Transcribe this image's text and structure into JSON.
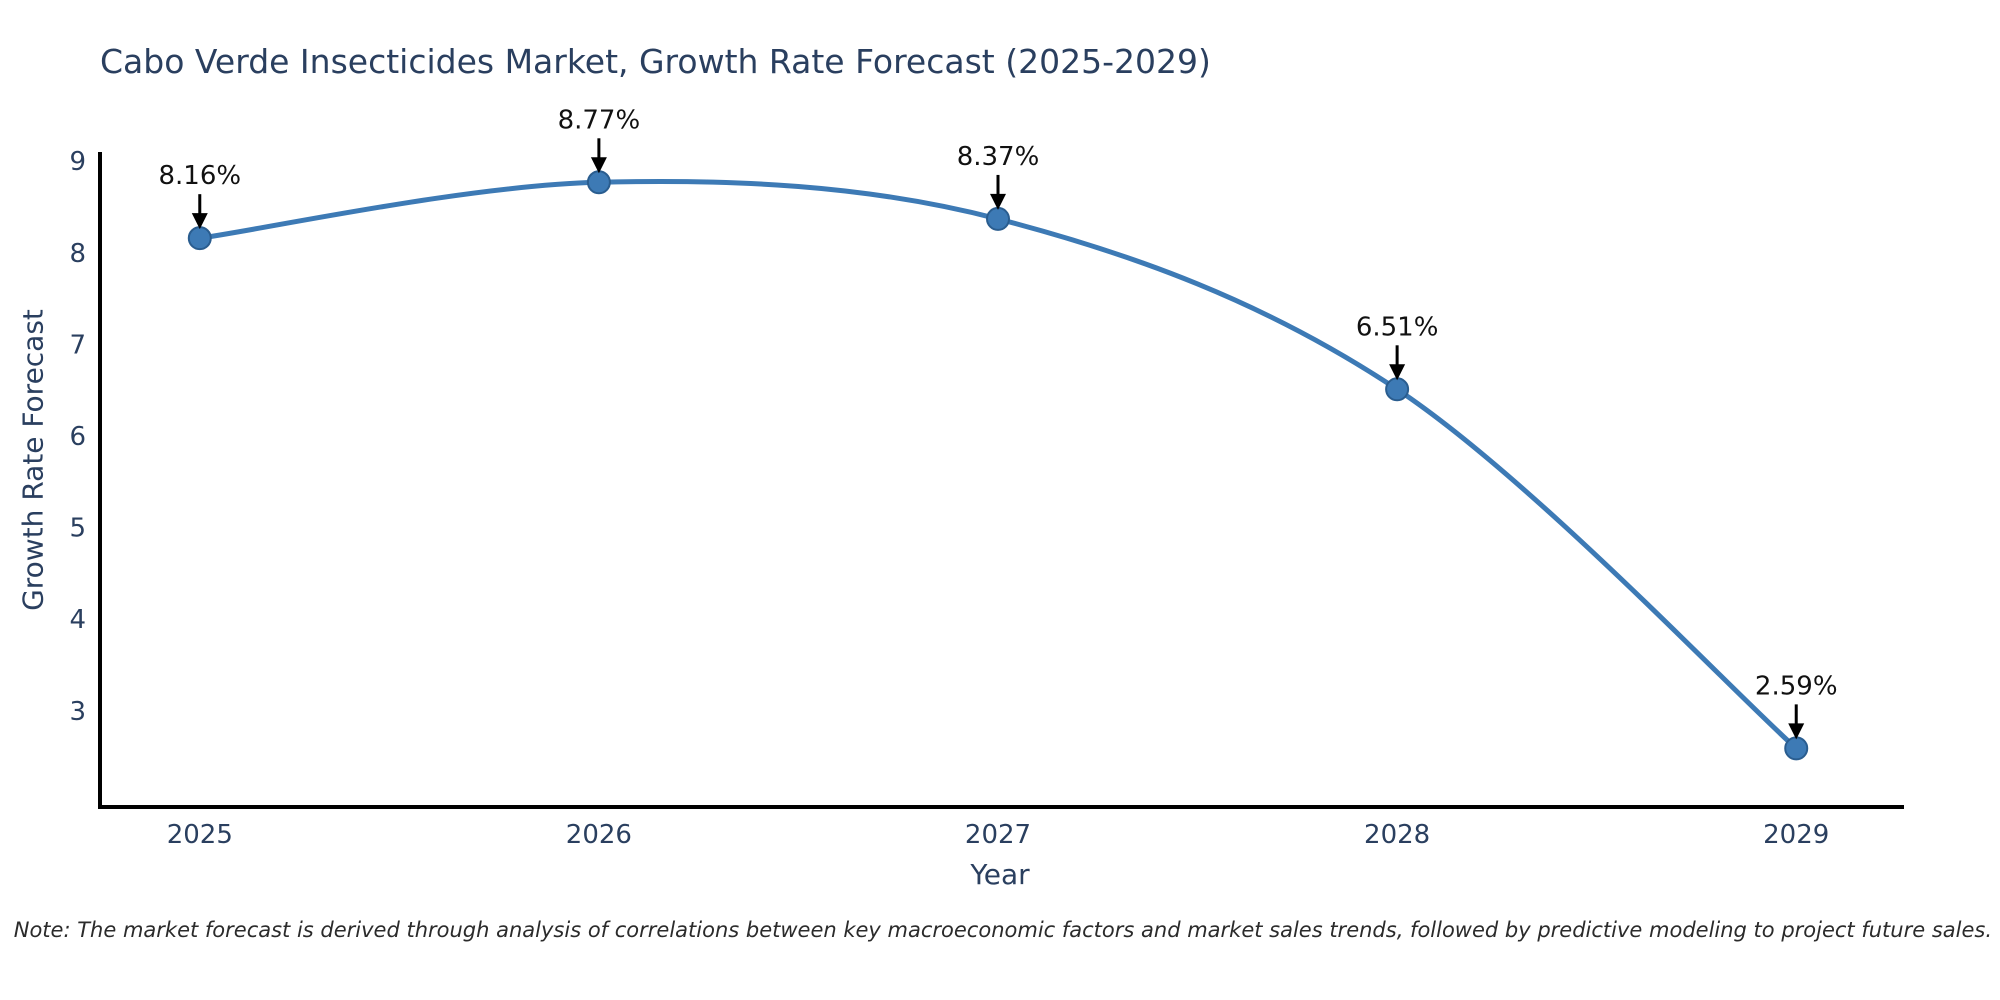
{
  "page": {
    "background": "#ffffff"
  },
  "note": "Note: The market forecast is derived through analysis of correlations between key macroeconomic factors and market sales trends, followed by predictive modeling to project future sales.",
  "chart_data": {
    "type": "line",
    "title": "Cabo Verde Insecticides Market, Growth Rate Forecast (2025-2029)",
    "xlabel": "Year",
    "ylabel": "Growth Rate Forecast",
    "x": [
      2025,
      2026,
      2027,
      2028,
      2029
    ],
    "values": [
      8.16,
      8.77,
      8.37,
      6.51,
      2.59
    ],
    "point_labels": [
      "8.16%",
      "8.77%",
      "8.37%",
      "6.51%",
      "2.59%"
    ],
    "x_tick_labels": [
      "2025",
      "2026",
      "2027",
      "2028",
      "2029"
    ],
    "y_ticks": [
      3,
      4,
      5,
      6,
      7,
      8,
      9
    ],
    "xlim": [
      2024.75,
      2029.26
    ],
    "ylim": [
      1.95,
      9.45
    ],
    "grid": false,
    "legend": "none",
    "line_shape": "spline",
    "annotation_arrows": "down-to-point",
    "colors": {
      "line": "#3d7ab5",
      "marker_fill": "#3d7ab5",
      "marker_edge": "#2a5d8f",
      "annotation": "#000000",
      "axis_line": "#000000",
      "tick_text": "#2a3f5f",
      "title_text": "#2a3f5f"
    }
  }
}
